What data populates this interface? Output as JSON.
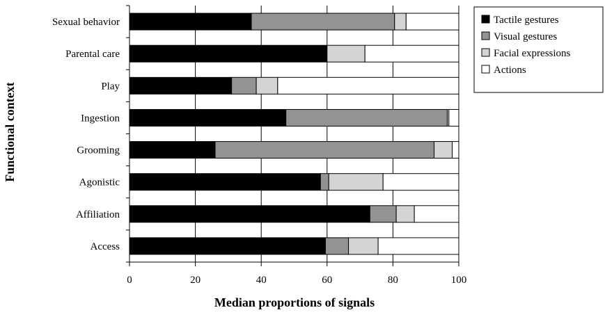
{
  "chart_data": {
    "type": "bar",
    "orientation": "horizontal",
    "stacked": true,
    "xlabel": "Median proportions of signals",
    "ylabel": "Functional context",
    "xlim": [
      0,
      100
    ],
    "xticks": [
      0,
      20,
      40,
      60,
      80,
      100
    ],
    "grid": "vertical",
    "legend_position": "top-right",
    "categories": [
      "Sexual behavior",
      "Parental care",
      "Play",
      "Ingestion",
      "Grooming",
      "Agonistic",
      "Affiliation",
      "Access"
    ],
    "series": [
      {
        "name": "Tactile gestures",
        "color": "#000000",
        "values": [
          37,
          60,
          31,
          47.5,
          26,
          58,
          73,
          59.5
        ]
      },
      {
        "name": "Visual gestures",
        "color": "#939393",
        "values": [
          43.5,
          0,
          7.5,
          49,
          66.5,
          2.5,
          8,
          7
        ]
      },
      {
        "name": "Facial expressions",
        "color": "#d4d4d4",
        "values": [
          3.5,
          11.5,
          6.5,
          0.5,
          5.5,
          16.5,
          5.5,
          9
        ]
      },
      {
        "name": "Actions",
        "color": "#ffffff",
        "values": [
          16,
          28.5,
          55,
          3,
          2,
          23,
          13.5,
          24.5
        ]
      }
    ]
  }
}
